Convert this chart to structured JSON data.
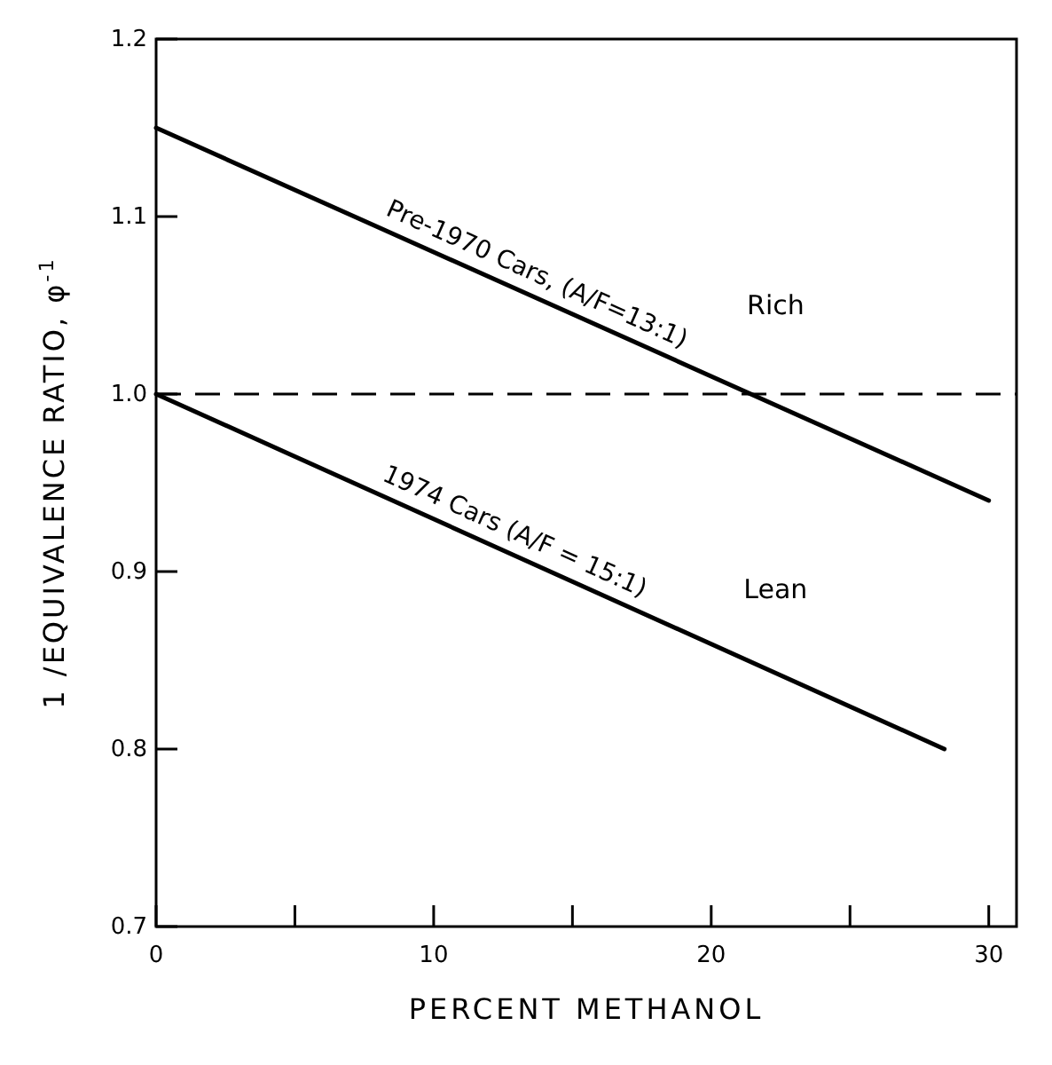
{
  "chart_data": {
    "type": "line",
    "xlabel": "PERCENT METHANOL",
    "ylabel": "1 /EQUIVALENCE RATIO, φ$^{-1}$",
    "xlim": [
      0,
      31
    ],
    "ylim": [
      0.7,
      1.2
    ],
    "xticks": [
      0,
      {
        "value": 5,
        "label": null
      },
      10,
      {
        "value": 15,
        "label": null
      },
      20,
      {
        "value": 25,
        "label": null
      },
      30
    ],
    "yticks": [
      0.7,
      0.8,
      0.9,
      {
        "value": 1,
        "label": "1.0"
      },
      1.1,
      1.2
    ],
    "series": [
      {
        "name": "Pre-1970 Cars, (A/F=13:1)",
        "color": "#000000",
        "x": [
          0,
          30
        ],
        "values": [
          1.15,
          0.94
        ]
      },
      {
        "name": "1974 Cars (A/F = 15:1)",
        "color": "#000000",
        "x": [
          0,
          28.4
        ],
        "values": [
          1.0,
          0.8
        ]
      }
    ],
    "ref_lines": [
      {
        "axis": "y",
        "value": 1.0,
        "line_style": "dashed",
        "color": "#000000"
      }
    ],
    "annotations": [
      "Rich",
      "Lean"
    ],
    "grid": false,
    "marker": "none",
    "line_style": "solid"
  }
}
